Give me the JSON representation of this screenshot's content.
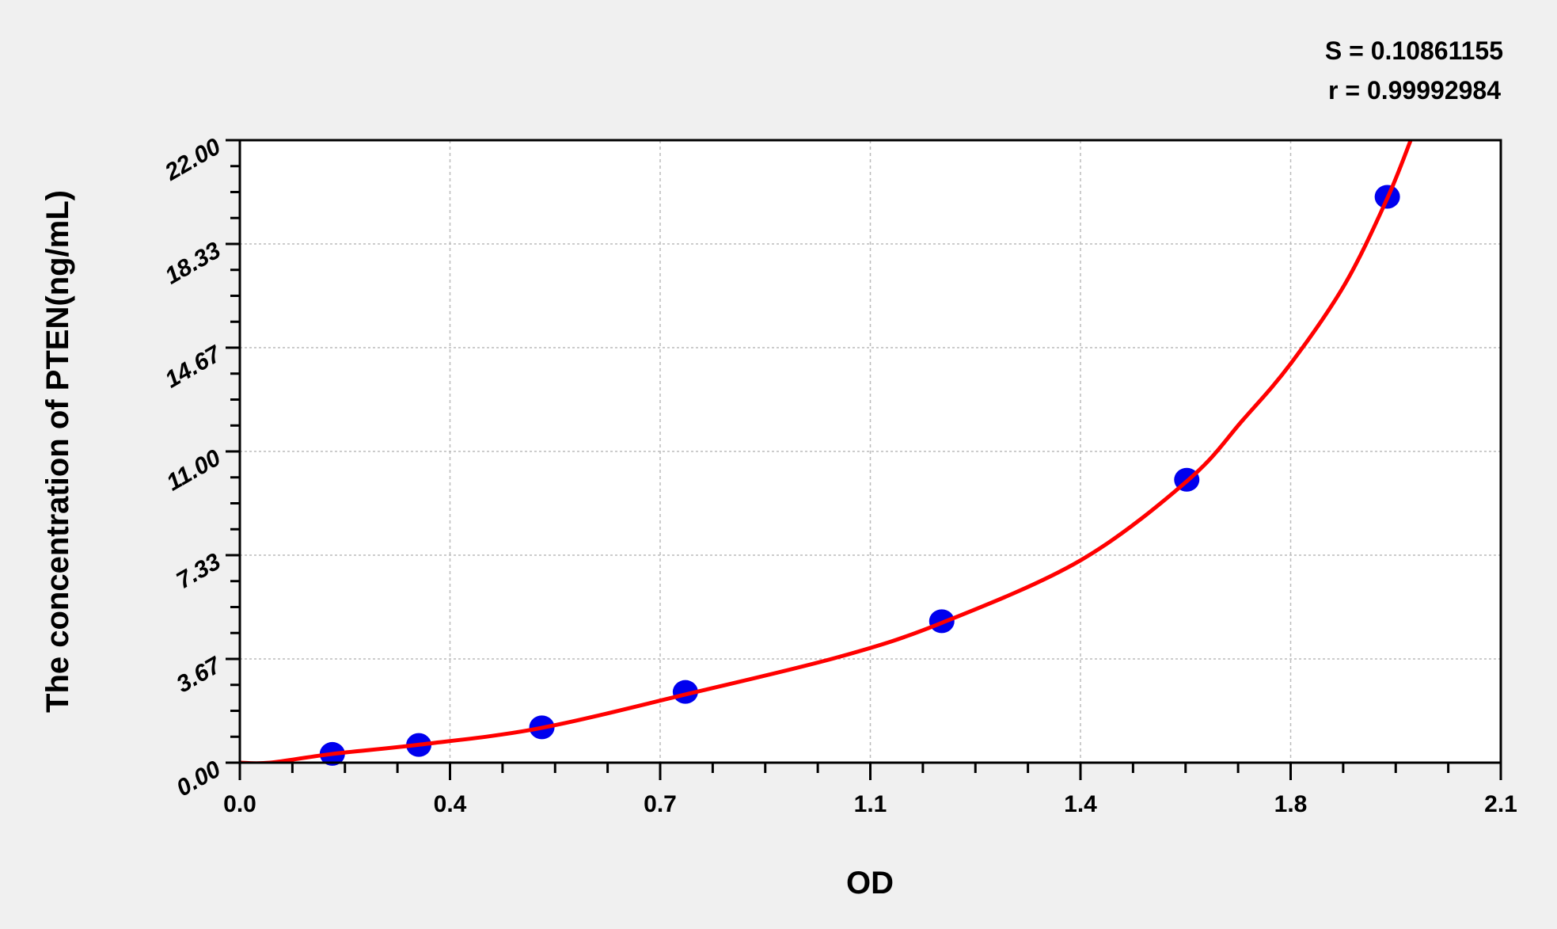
{
  "chart_data": {
    "type": "scatter",
    "title": "",
    "xlabel": "OD",
    "ylabel": "The concentration of PTEN(ng/mL)",
    "xlim": [
      0,
      2.1
    ],
    "ylim": [
      0,
      22
    ],
    "x_ticks": [
      0,
      0.35,
      0.7,
      1.05,
      1.4,
      1.75,
      2.1
    ],
    "x_tick_labels": [
      "0.0",
      "0.4",
      "0.7",
      "1.1",
      "1.4",
      "1.8",
      "2.1"
    ],
    "y_ticks": [
      0,
      3.6667,
      7.3333,
      11,
      14.6667,
      18.3333,
      22
    ],
    "y_tick_labels": [
      "0.00",
      "3.67",
      "7.33",
      "11.00",
      "14.67",
      "18.33",
      "22.00"
    ],
    "grid": true,
    "points": {
      "x": [
        0.154,
        0.298,
        0.503,
        0.742,
        1.169,
        1.577,
        1.911
      ],
      "y": [
        0.31,
        0.625,
        1.25,
        2.5,
        5,
        10,
        20
      ],
      "color": "#0000ee"
    },
    "fit_curve": {
      "x": [
        0,
        0.05,
        0.154,
        0.3,
        0.5,
        0.75,
        1.0,
        1.17,
        1.4,
        1.58,
        1.67,
        1.75,
        1.84,
        1.91,
        1.95
      ],
      "y": [
        0,
        0,
        0.31,
        0.64,
        1.22,
        2.45,
        3.75,
        4.95,
        7.15,
        10.0,
        12.1,
        14.1,
        16.9,
        19.9,
        22.0
      ],
      "color": "#ff0000"
    },
    "annotations": {
      "s": "S = 0.10861155",
      "r": "r = 0.99992984"
    }
  }
}
